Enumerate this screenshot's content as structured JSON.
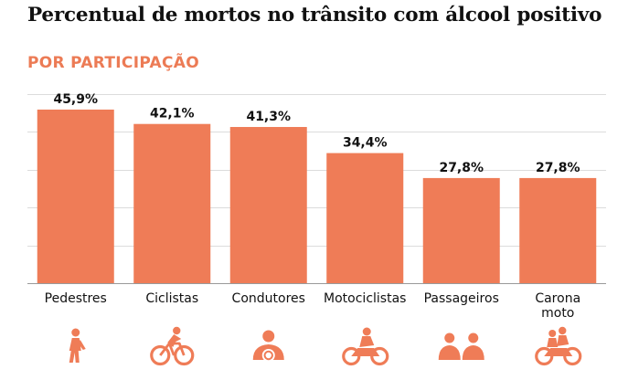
{
  "title": "Percentual de mortos no trânsito com álcool positivo",
  "subtitle": "POR PARTICIPAÇÃO",
  "colors": {
    "bar": "#ef7c57",
    "icon": "#ef7c57",
    "grid": "#dcdcdc",
    "axis": "#9a9a9a",
    "text": "#111111"
  },
  "chart_data": {
    "type": "bar",
    "categories": [
      "Pedestres",
      "Ciclistas",
      "Condutores",
      "Motociclistas",
      "Passageiros",
      "Carona\nmoto"
    ],
    "values": [
      45.9,
      42.1,
      41.3,
      34.4,
      27.8,
      27.8
    ],
    "data_labels": [
      "45,9%",
      "42,1%",
      "41,3%",
      "34,4%",
      "27,8%",
      "27,8%"
    ],
    "title": "Percentual de mortos no trânsito com álcool positivo",
    "subtitle": "POR PARTICIPAÇÃO",
    "xlabel": "",
    "ylabel": "",
    "ylim": [
      0,
      50
    ],
    "grid": true,
    "legend": "none"
  },
  "icons": [
    "pedestrian-icon",
    "bicycle-icon",
    "driver-icon",
    "motorcycle-icon",
    "passengers-icon",
    "motorcycle-passenger-icon"
  ]
}
